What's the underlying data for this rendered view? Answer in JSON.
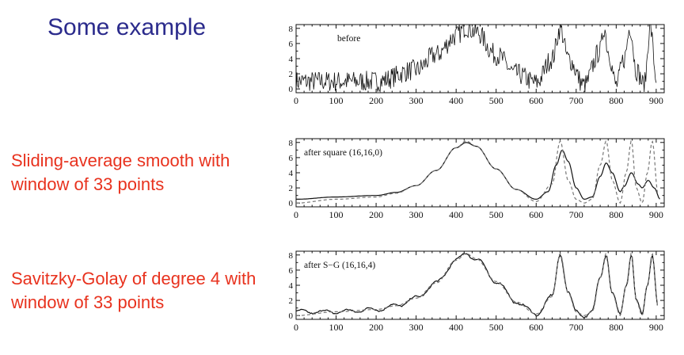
{
  "slide": {
    "title": "Some example",
    "captions": [
      "Sliding-average smooth with window of 33 points",
      "Savitzky-Golay of degree 4 with window of 33 points"
    ]
  },
  "colors": {
    "title": "#2b2b8c",
    "caption": "#e8321e",
    "trace": "#111111",
    "reference": "#777777"
  },
  "chart_data": [
    {
      "type": "line",
      "annotation": "before",
      "xlim": [
        0,
        920
      ],
      "ylim": [
        -0.5,
        8.5
      ],
      "xticks": [
        0,
        100,
        200,
        300,
        400,
        500,
        600,
        700,
        800,
        900
      ],
      "yticks": [
        0,
        2,
        4,
        6,
        8
      ],
      "series": [
        {
          "style": "noisy-solid",
          "x": [
            0,
            100,
            200,
            300,
            350,
            400,
            425,
            450,
            500,
            550,
            600,
            640,
            660,
            680,
            720,
            760,
            770,
            780,
            800,
            820,
            835,
            850,
            870,
            885,
            900
          ],
          "y": [
            1,
            1,
            1,
            2.5,
            4.5,
            7,
            8.2,
            7.5,
            4.5,
            2,
            0.8,
            4,
            8,
            4,
            0.5,
            5,
            8.2,
            5,
            0.5,
            4,
            8.2,
            2.5,
            0.5,
            8.2,
            1.5
          ]
        }
      ]
    },
    {
      "type": "line",
      "annotation": "after square (16,16,0)",
      "xlim": [
        0,
        920
      ],
      "ylim": [
        -0.5,
        8.5
      ],
      "xticks": [
        0,
        100,
        200,
        300,
        400,
        500,
        600,
        700,
        800,
        900
      ],
      "yticks": [
        0,
        2,
        4,
        6,
        8
      ],
      "series": [
        {
          "style": "solid",
          "x": [
            0,
            100,
            200,
            250,
            300,
            350,
            400,
            425,
            450,
            500,
            550,
            600,
            630,
            650,
            665,
            680,
            700,
            720,
            740,
            760,
            775,
            790,
            810,
            820,
            838,
            855,
            865,
            880,
            895,
            910
          ],
          "y": [
            0.5,
            0.8,
            1,
            1.4,
            2.3,
            4.3,
            7.3,
            8,
            7.5,
            4.5,
            1.8,
            0.5,
            1.5,
            5,
            7,
            5.5,
            2,
            0.5,
            0.8,
            3.5,
            5.3,
            4,
            1.5,
            2.2,
            4,
            2.5,
            2,
            3,
            2,
            0.5
          ]
        },
        {
          "style": "dashed",
          "x": [
            0,
            100,
            200,
            250,
            300,
            350,
            400,
            425,
            450,
            500,
            550,
            600,
            640,
            660,
            680,
            700,
            720,
            740,
            760,
            775,
            790,
            810,
            825,
            838,
            850,
            865,
            878,
            890,
            905
          ],
          "y": [
            0,
            0.5,
            0.8,
            1.3,
            2.3,
            4.3,
            7.3,
            8.2,
            7.5,
            4.5,
            1.8,
            0.2,
            2.5,
            8.2,
            3,
            0.5,
            0,
            0.5,
            5,
            8.2,
            3,
            0,
            4,
            8.2,
            2,
            0,
            4,
            8.2,
            1
          ]
        }
      ]
    },
    {
      "type": "line",
      "annotation": "after S−G (16,16,4)",
      "xlim": [
        0,
        920
      ],
      "ylim": [
        -0.5,
        8.5
      ],
      "xticks": [
        0,
        100,
        200,
        300,
        400,
        500,
        600,
        700,
        800,
        900
      ],
      "yticks": [
        0,
        2,
        4,
        6,
        8
      ],
      "series": [
        {
          "style": "wiggly-solid",
          "x": [
            0,
            100,
            200,
            250,
            300,
            350,
            400,
            425,
            450,
            500,
            550,
            600,
            640,
            660,
            680,
            700,
            720,
            740,
            760,
            775,
            790,
            810,
            825,
            838,
            850,
            865,
            878,
            890,
            905
          ],
          "y": [
            0.5,
            0.5,
            0.8,
            1.3,
            2.3,
            4.3,
            7.3,
            8.2,
            7.5,
            4.5,
            1.8,
            0.2,
            2.5,
            8.2,
            3,
            0.5,
            0,
            0.5,
            5,
            8.2,
            3,
            0,
            4,
            8.2,
            2,
            0,
            4,
            8.2,
            1
          ]
        },
        {
          "style": "dashed",
          "x": [
            0,
            100,
            200,
            250,
            300,
            350,
            400,
            425,
            450,
            500,
            550,
            600,
            640,
            660,
            680,
            700,
            720,
            740,
            760,
            775,
            790,
            810,
            825,
            838,
            850,
            865,
            878,
            890,
            905
          ],
          "y": [
            0,
            0.5,
            0.8,
            1.3,
            2.3,
            4.3,
            7.3,
            8.2,
            7.5,
            4.5,
            1.8,
            0.2,
            2.5,
            8.2,
            3,
            0.5,
            0,
            0.5,
            5,
            8.2,
            3,
            0,
            4,
            8.2,
            2,
            0,
            4,
            8.2,
            1
          ]
        }
      ]
    }
  ]
}
